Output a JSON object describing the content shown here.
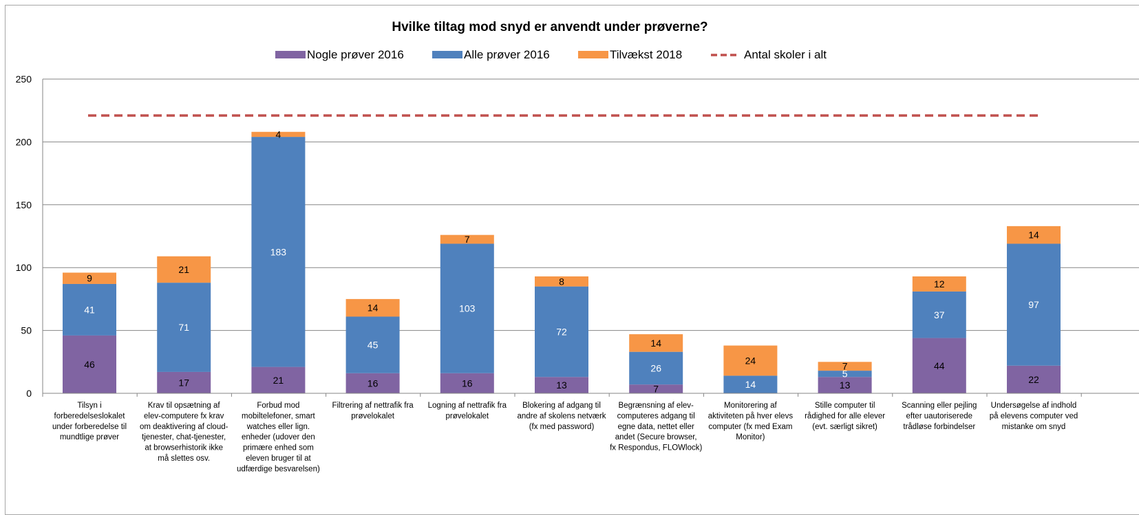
{
  "chart_data": {
    "type": "bar",
    "stacked": true,
    "title": "Hvilke tiltag mod snyd er anvendt under prøverne?",
    "xlabel": "",
    "ylabel": "",
    "ylim": [
      0,
      250
    ],
    "yticks": [
      0,
      50,
      100,
      150,
      200,
      250
    ],
    "grid": true,
    "legend_position": "top",
    "categories": [
      [
        "Tilsyn i",
        "forberedelseslokalet",
        "under forberedelse til",
        "mundtlige prøver"
      ],
      [
        "Krav til opsætning af",
        "elev-computere fx krav",
        "om deaktivering af cloud-",
        "tjenester, chat-tjenester,",
        "at browserhistorik ikke",
        "må slettes osv."
      ],
      [
        "Forbud mod",
        "mobiltelefoner, smart",
        "watches eller lign.",
        "enheder (udover den",
        "primære enhed som",
        "eleven bruger til at",
        "udfærdige besvarelsen)"
      ],
      [
        "Filtrering af nettrafik fra",
        "prøvelokalet"
      ],
      [
        "Logning af nettrafik fra",
        "prøvelokalet"
      ],
      [
        "Blokering af adgang til",
        "andre af skolens netværk",
        "(fx med password)"
      ],
      [
        "Begrænsning af elev-",
        "computeres adgang til",
        "egne data, nettet eller",
        "andet (Secure browser,",
        "fx Respondus, FLOWlock)"
      ],
      [
        "Monitorering af",
        "aktiviteten på hver elevs",
        "computer (fx med Exam",
        "Monitor)"
      ],
      [
        "Stille computer til",
        "rådighed for alle elever",
        "(evt. særligt sikret)"
      ],
      [
        "Scanning eller pejling",
        "efter uautoriserede",
        "trådløse forbindelser"
      ],
      [
        "Undersøgelse af indhold",
        "på elevens computer ved",
        "mistanke om snyd"
      ]
    ],
    "series": [
      {
        "name": "Nogle prøver 2016",
        "color": "#8064a2",
        "label_color": "#000000",
        "values": [
          46,
          17,
          21,
          16,
          16,
          13,
          7,
          0,
          13,
          44,
          22
        ]
      },
      {
        "name": "Alle prøver 2016",
        "color": "#4f81bd",
        "label_color": "#ffffff",
        "values": [
          41,
          71,
          183,
          45,
          103,
          72,
          26,
          14,
          5,
          37,
          97
        ]
      },
      {
        "name": "Tilvækst 2018",
        "color": "#f79646",
        "label_color": "#000000",
        "values": [
          9,
          21,
          4,
          14,
          7,
          8,
          14,
          24,
          7,
          12,
          14
        ]
      }
    ],
    "reference_line": {
      "name": "Antal skoler i alt",
      "value": 221,
      "color": "#c0504d",
      "style": "dashed"
    }
  }
}
